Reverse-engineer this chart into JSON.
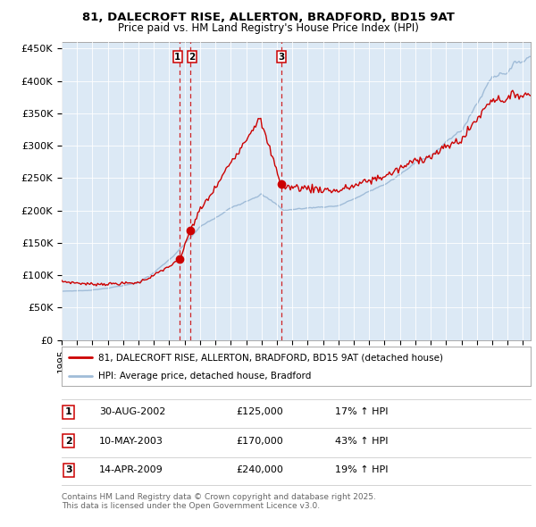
{
  "title1": "81, DALECROFT RISE, ALLERTON, BRADFORD, BD15 9AT",
  "title2": "Price paid vs. HM Land Registry's House Price Index (HPI)",
  "bg_color": "#dce9f5",
  "hpi_line_color": "#a0bcd8",
  "price_line_color": "#cc0000",
  "marker_color": "#cc0000",
  "dashed_color": "#cc0000",
  "ytick_labels": [
    "£0",
    "£50K",
    "£100K",
    "£150K",
    "£200K",
    "£250K",
    "£300K",
    "£350K",
    "£400K",
    "£450K"
  ],
  "yticks": [
    0,
    50000,
    100000,
    150000,
    200000,
    250000,
    300000,
    350000,
    400000,
    450000
  ],
  "ylim": [
    0,
    460000
  ],
  "legend1": "81, DALECROFT RISE, ALLERTON, BRADFORD, BD15 9AT (detached house)",
  "legend2": "HPI: Average price, detached house, Bradford",
  "sale1_date": "30-AUG-2002",
  "sale1_price": 125000,
  "sale1_pct": "17%",
  "sale2_date": "10-MAY-2003",
  "sale2_price": 170000,
  "sale2_pct": "43%",
  "sale3_date": "14-APR-2009",
  "sale3_price": 240000,
  "sale3_pct": "19%",
  "footer": "Contains HM Land Registry data © Crown copyright and database right 2025.\nThis data is licensed under the Open Government Licence v3.0.",
  "sale1_x": 2002.66,
  "sale2_x": 2003.36,
  "sale3_x": 2009.28
}
